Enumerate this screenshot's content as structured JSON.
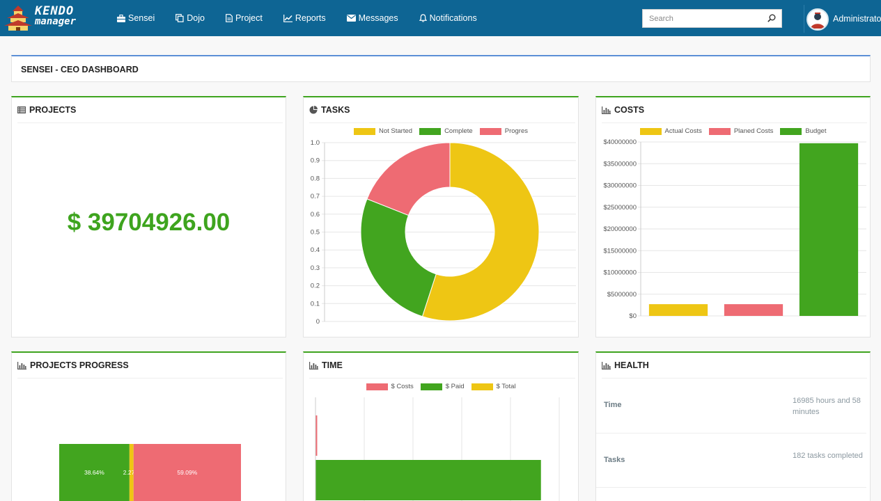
{
  "app": {
    "logo_line1": "KENDO",
    "logo_line2": "manager"
  },
  "nav": {
    "items": [
      {
        "label": "Sensei",
        "icon": "briefcase-icon"
      },
      {
        "label": "Dojo",
        "icon": "copy-icon"
      },
      {
        "label": "Project",
        "icon": "file-icon"
      },
      {
        "label": "Reports",
        "icon": "line-chart-icon"
      },
      {
        "label": "Messages",
        "icon": "envelope-icon"
      },
      {
        "label": "Notifications",
        "icon": "bell-icon"
      }
    ],
    "search_placeholder": "Search",
    "user_name": "Administrator"
  },
  "page": {
    "title": "SENSEI - CEO DASHBOARD"
  },
  "panels": {
    "projects": {
      "title": "PROJECTS",
      "amount": "$ 39704926.00"
    },
    "tasks": {
      "title": "TASKS"
    },
    "costs": {
      "title": "COSTS"
    },
    "projects_progress": {
      "title": "PROJECTS PROGRESS"
    },
    "time": {
      "title": "TIME"
    },
    "health": {
      "title": "HEALTH",
      "rows": [
        {
          "label": "Time",
          "value": "16985 hours and 58 minutes"
        },
        {
          "label": "Tasks",
          "value": "182 tasks completed"
        }
      ]
    }
  },
  "colors": {
    "navbar": "#0e6594",
    "green": "#42a51f",
    "yellow": "#eec614",
    "red": "#ee6b73"
  },
  "chart_data": [
    {
      "id": "tasks",
      "type": "pie",
      "variant": "doughnut",
      "legend": [
        {
          "label": "Not Started",
          "color": "#eec614"
        },
        {
          "label": "Complete",
          "color": "#42a51f"
        },
        {
          "label": "Progres",
          "color": "#ee6b73"
        }
      ],
      "values": [
        0.55,
        0.26,
        0.19
      ],
      "yticks": [
        "1.0",
        "0.9",
        "0.8",
        "0.7",
        "0.6",
        "0.5",
        "0.4",
        "0.3",
        "0.2",
        "0.1",
        "0"
      ]
    },
    {
      "id": "costs",
      "type": "bar",
      "series": [
        {
          "name": "Actual Costs",
          "value": 2700000,
          "color": "#eec614"
        },
        {
          "name": "Planed Costs",
          "value": 2700000,
          "color": "#ee6b73"
        },
        {
          "name": "Budget",
          "value": 39704926,
          "color": "#42a51f"
        }
      ],
      "ylim": [
        0,
        40000000
      ],
      "yticks": [
        "$40000000",
        "$35000000",
        "$30000000",
        "$25000000",
        "$20000000",
        "$15000000",
        "$10000000",
        "$5000000",
        "$0"
      ]
    },
    {
      "id": "projects_progress",
      "type": "bar",
      "orientation": "horizontal-stacked",
      "segments": [
        {
          "value": 38.64,
          "label": "38.64%",
          "color": "#42a51f"
        },
        {
          "value": 2.27,
          "label": "2.27%",
          "color": "#eec614"
        },
        {
          "value": 59.09,
          "label": "59.09%",
          "color": "#ee6b73"
        }
      ]
    },
    {
      "id": "time",
      "type": "bar",
      "orientation": "horizontal",
      "legend": [
        {
          "label": "$ Costs",
          "color": "#ee6b73"
        },
        {
          "label": "$ Paid",
          "color": "#42a51f"
        },
        {
          "label": "$ Total",
          "color": "#eec614"
        }
      ],
      "series": [
        {
          "name": "$ Costs",
          "value": 0.007,
          "color": "#ee6b73"
        },
        {
          "name": "$ Paid",
          "value": 0.925,
          "color": "#42a51f"
        }
      ],
      "xlim": [
        0,
        1
      ]
    }
  ]
}
